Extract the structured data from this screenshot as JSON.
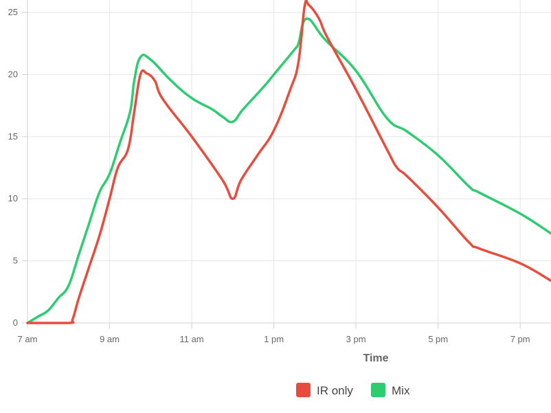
{
  "chart_data": {
    "type": "line",
    "title": "",
    "xlabel": "Time",
    "ylabel": "",
    "x_ticks": [
      "7 am",
      "9 am",
      "11 am",
      "1 pm",
      "3 pm",
      "5 pm",
      "7 pm"
    ],
    "xlim_hours": [
      7,
      19.75
    ],
    "ylim": [
      0,
      26
    ],
    "y_ticks": [
      0,
      5,
      10,
      15,
      20,
      25
    ],
    "grid": true,
    "legend_position": "bottom",
    "series": [
      {
        "name": "IR only",
        "color": "#e74c3c",
        "points": [
          [
            7,
            0
          ],
          [
            8,
            0
          ],
          [
            8.1,
            0.3
          ],
          [
            8.25,
            2
          ],
          [
            8.5,
            4.5
          ],
          [
            8.75,
            7
          ],
          [
            9,
            10
          ],
          [
            9.2,
            12.5
          ],
          [
            9.45,
            14
          ],
          [
            9.6,
            17
          ],
          [
            9.75,
            20
          ],
          [
            9.9,
            20.1
          ],
          [
            10.1,
            19.5
          ],
          [
            10.3,
            18
          ],
          [
            11,
            15
          ],
          [
            11.75,
            11.5
          ],
          [
            12,
            10
          ],
          [
            12.2,
            11.5
          ],
          [
            12.6,
            13.5
          ],
          [
            13,
            15.5
          ],
          [
            13.4,
            18.8
          ],
          [
            13.6,
            21
          ],
          [
            13.75,
            25.5
          ],
          [
            13.85,
            25.6
          ],
          [
            14.1,
            24.5
          ],
          [
            14.3,
            23
          ],
          [
            15,
            18.8
          ],
          [
            15.75,
            14
          ],
          [
            16,
            12.5
          ],
          [
            16.25,
            11.8
          ],
          [
            17,
            9.3
          ],
          [
            17.75,
            6.5
          ],
          [
            18,
            6
          ],
          [
            19,
            4.8
          ],
          [
            19.75,
            3.4
          ]
        ]
      },
      {
        "name": "Mix",
        "color": "#2ecc71",
        "points": [
          [
            7,
            0
          ],
          [
            7.25,
            0.5
          ],
          [
            7.5,
            1
          ],
          [
            7.75,
            2
          ],
          [
            8,
            3
          ],
          [
            8.25,
            5.5
          ],
          [
            8.5,
            8
          ],
          [
            8.75,
            10.5
          ],
          [
            9,
            12
          ],
          [
            9.25,
            14.5
          ],
          [
            9.5,
            17
          ],
          [
            9.6,
            19.5
          ],
          [
            9.75,
            21.4
          ],
          [
            10,
            21.2
          ],
          [
            10.5,
            19.5
          ],
          [
            11,
            18.1
          ],
          [
            11.5,
            17.2
          ],
          [
            11.75,
            16.6
          ],
          [
            12,
            16.2
          ],
          [
            12.25,
            17.2
          ],
          [
            12.75,
            19
          ],
          [
            13,
            20
          ],
          [
            13.5,
            22
          ],
          [
            13.6,
            22.5
          ],
          [
            13.8,
            24.5
          ],
          [
            14.25,
            22.8
          ],
          [
            15,
            20.3
          ],
          [
            15.75,
            16.5
          ],
          [
            16.25,
            15.4
          ],
          [
            17,
            13.5
          ],
          [
            17.75,
            11
          ],
          [
            18,
            10.5
          ],
          [
            19,
            8.8
          ],
          [
            19.75,
            7.2
          ]
        ]
      }
    ]
  }
}
